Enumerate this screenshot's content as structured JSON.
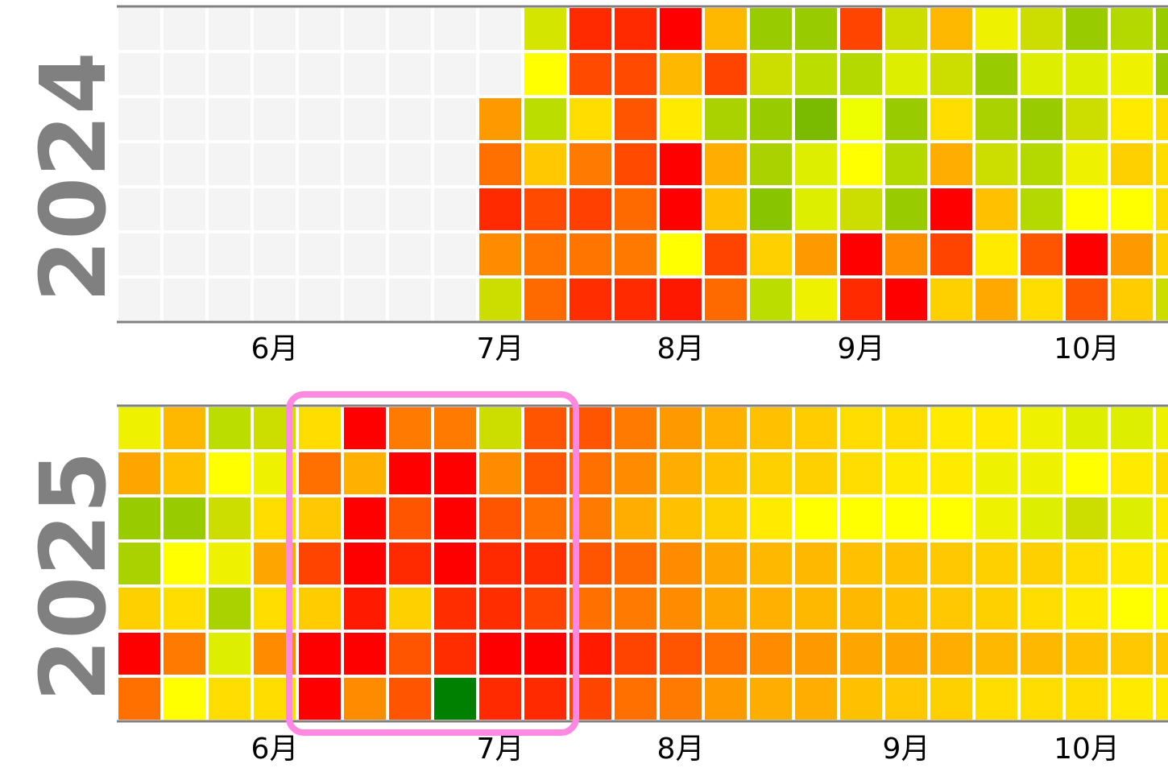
{
  "chart_data": [
    {
      "type": "heatmap",
      "year": "2024",
      "month_labels": [
        {
          "text": "6月",
          "week": 3
        },
        {
          "text": "7月",
          "week": 8
        },
        {
          "text": "8月",
          "week": 12
        },
        {
          "text": "9月",
          "week": 16
        },
        {
          "text": "10月",
          "week": 21
        }
      ],
      "cells": [
        [
          "n",
          "n",
          "n",
          "n",
          "n",
          "n",
          "n"
        ],
        [
          "n",
          "n",
          "n",
          "n",
          "n",
          "n",
          "n"
        ],
        [
          "n",
          "n",
          "n",
          "n",
          "n",
          "n",
          "n"
        ],
        [
          "n",
          "n",
          "n",
          "n",
          "n",
          "n",
          "n"
        ],
        [
          "n",
          "n",
          "n",
          "n",
          "n",
          "n",
          "n"
        ],
        [
          "n",
          "n",
          "n",
          "n",
          "n",
          "n",
          "n"
        ],
        [
          "n",
          "n",
          "n",
          "n",
          "n",
          "n",
          "n"
        ],
        [
          "n",
          "n",
          "n",
          "n",
          "n",
          "n",
          "n"
        ],
        [
          "n",
          "n",
          "#ff9900",
          "#ff7000",
          "#ff2a00",
          "#ff8c00",
          "#ccdd00"
        ],
        [
          "#d4e600",
          "#ffff00",
          "#bbdd00",
          "#ffc800",
          "#ff4a00",
          "#ff7500",
          "#ff6a00"
        ],
        [
          "#ff2a00",
          "#ff4a00",
          "#ffdd00",
          "#ff7a00",
          "#ff4000",
          "#ff7500",
          "#ff2d00"
        ],
        [
          "#ff2a00",
          "#ff4a00",
          "#ff5500",
          "#ff4a00",
          "#ff6a00",
          "#ff7800",
          "#ff2a00"
        ],
        [
          "#ff0000",
          "#ffb800",
          "#ffea00",
          "#ff0000",
          "#ff0000",
          "#ffff00",
          "#ff1800"
        ],
        [
          "#ffb800",
          "#ff4400",
          "#aad200",
          "#ffae00",
          "#ffc000",
          "#ff4400",
          "#ff6a00"
        ],
        [
          "#99cc00",
          "#ccdd00",
          "#99cc00",
          "#aad200",
          "#88c400",
          "#ffd000",
          "#bbdd00"
        ],
        [
          "#99cc00",
          "#bbdd00",
          "#7abb00",
          "#ddee00",
          "#ddee00",
          "#ff9900",
          "#eef200"
        ],
        [
          "#ff4400",
          "#b4d900",
          "#eeff00",
          "#ffff00",
          "#ccdd00",
          "#ff0000",
          "#ff2a00"
        ],
        [
          "#ccdd00",
          "#ddee00",
          "#99cc00",
          "#b4d900",
          "#99cc00",
          "#ff8c00",
          "#ff0000"
        ],
        [
          "#ffb800",
          "#ccdd00",
          "#ffdd00",
          "#ffae00",
          "#ff0000",
          "#ff4400",
          "#ffd000"
        ],
        [
          "#eef200",
          "#99cc00",
          "#aad200",
          "#ccdd00",
          "#ffc000",
          "#ffea00",
          "#ffa800"
        ],
        [
          "#ccdd00",
          "#ddee00",
          "#99cc00",
          "#b4d900",
          "#b4d900",
          "#ff5500",
          "#ffdd00"
        ],
        [
          "#99cc00",
          "#ddee00",
          "#ccdd00",
          "#eef200",
          "#ffff00",
          "#ff0000",
          "#ff5500"
        ],
        [
          "#b4d900",
          "#eef200",
          "#ffea00",
          "#ffd000",
          "#ffff00",
          "#ff9900",
          "#ffcc00"
        ],
        [
          "#99cc00",
          "#99cc00",
          "#ffdd00",
          "#ffdd00",
          "#ffdd00",
          "#ffd000",
          "#ccdd00"
        ]
      ]
    },
    {
      "type": "heatmap",
      "year": "2025",
      "month_labels": [
        {
          "text": "6月",
          "week": 3
        },
        {
          "text": "7月",
          "week": 8
        },
        {
          "text": "8月",
          "week": 12
        },
        {
          "text": "9月",
          "week": 17
        },
        {
          "text": "10月",
          "week": 21
        }
      ],
      "cells": [
        [
          "#eef200",
          "#ffa500",
          "#99cc00",
          "#aad200",
          "#ffd000",
          "#ff0000",
          "#ff7000"
        ],
        [
          "#ffb800",
          "#ffc000",
          "#99cc00",
          "#ffff00",
          "#ffdd00",
          "#ff7a00",
          "#ffff00"
        ],
        [
          "#bbdd00",
          "#ffff00",
          "#ccdd00",
          "#eef200",
          "#aad200",
          "#ddee00",
          "#ffdd00"
        ],
        [
          "#ccdd00",
          "#eef200",
          "#ffdd00",
          "#ffa500",
          "#ffdd00",
          "#ff8c00",
          "#ffdd00"
        ],
        [
          "#ffdd00",
          "#ff7000",
          "#ffc800",
          "#ff4400",
          "#ffcc00",
          "#ff0000",
          "#ff0000"
        ],
        [
          "#ff0000",
          "#ffb000",
          "#ff0000",
          "#ff0000",
          "#ff1a00",
          "#ff0000",
          "#ff8c00"
        ],
        [
          "#ff7a00",
          "#ff0000",
          "#ff5500",
          "#ff2a00",
          "#ffd000",
          "#ff5500",
          "#ff5500"
        ],
        [
          "#ff7a00",
          "#ff0000",
          "#ff0000",
          "#ff0000",
          "#ff2d00",
          "#ff2d00",
          "#008000"
        ],
        [
          "#ccdd00",
          "#ff8c00",
          "#ff5500",
          "#ff2a00",
          "#ff2d00",
          "#ff0000",
          "#ff2a00"
        ],
        [
          "#ff5500",
          "#ff5500",
          "#ff7000",
          "#ff2d00",
          "#ff4400",
          "#ff0000",
          "#ff2a00"
        ],
        [
          "#ff5500",
          "#ff7000",
          "#ff7a00",
          "#ff5500",
          "#ff7000",
          "#ff1a00",
          "#ff4400"
        ],
        [
          "#ff7a00",
          "#ff8c00",
          "#ffae00",
          "#ff6a00",
          "#ff7a00",
          "#ff4400",
          "#ff7000"
        ],
        [
          "#ff9900",
          "#ffae00",
          "#ffc000",
          "#ff8c00",
          "#ff8c00",
          "#ff5500",
          "#ff7a00"
        ],
        [
          "#ffb000",
          "#ffc000",
          "#ffd000",
          "#ffa500",
          "#ffa500",
          "#ff7000",
          "#ff9900"
        ],
        [
          "#ffc000",
          "#ffd000",
          "#ffea00",
          "#ffb800",
          "#ffb000",
          "#ff8c00",
          "#ffae00"
        ],
        [
          "#ffcc00",
          "#ffd000",
          "#ffff00",
          "#ffb800",
          "#ffb800",
          "#ff9900",
          "#ffae00"
        ],
        [
          "#ffdd00",
          "#ffdd00",
          "#ffff00",
          "#ffc000",
          "#ffb800",
          "#ffa500",
          "#ffc000"
        ],
        [
          "#ffdd00",
          "#ffea00",
          "#ffff00",
          "#ffc000",
          "#ffc000",
          "#ffa500",
          "#ffc800"
        ],
        [
          "#ffea00",
          "#ffea00",
          "#ffff00",
          "#ffc800",
          "#ffc800",
          "#ffae00",
          "#ffd000"
        ],
        [
          "#ffea00",
          "#eef200",
          "#eef200",
          "#ffd000",
          "#ffd000",
          "#ffb800",
          "#ffdd00"
        ],
        [
          "#eef200",
          "#eef200",
          "#ddee00",
          "#ffd000",
          "#ffdd00",
          "#ffb800",
          "#ffdd00"
        ],
        [
          "#ddee00",
          "#ffff00",
          "#ccdd00",
          "#ffdd00",
          "#ffea00",
          "#ffc000",
          "#ffdd00"
        ],
        [
          "#ddee00",
          "#ffea00",
          "#ddee00",
          "#ffea00",
          "#ffff00",
          "#ffc800",
          "#ffea00"
        ],
        [
          "#eef200",
          "#ffdd00",
          "#ffea00",
          "#ffea00",
          "#ffff00",
          "#ffc800",
          "#ffea00"
        ]
      ],
      "highlight": {
        "week_start": 4,
        "week_end": 9,
        "color": "#ff88e0"
      }
    }
  ]
}
